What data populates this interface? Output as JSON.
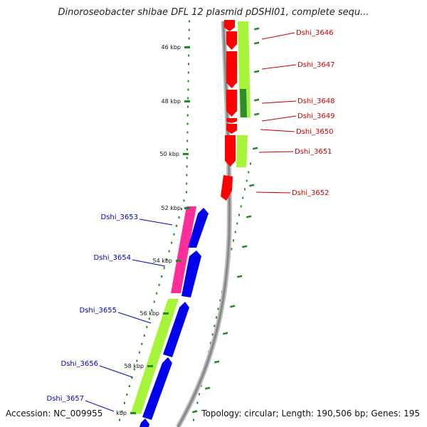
{
  "title": "Dinoroseobacter shibae DFL 12 plasmid pDSHI01, complete sequ...",
  "footer": {
    "accession": "Accession: NC_009955",
    "topology": "Topology: circular; Length: 190,506 bp; Genes: 195"
  },
  "colors": {
    "forward_cds": "#ff0000",
    "reverse_cds": "#0000ee",
    "orf_green": "#a6f53a",
    "orf_pink": "#ff2e9a",
    "orf_dark": "#2e8b2e",
    "backbone": "#888888",
    "tick": "#228b22",
    "forward_label": "#cc0000",
    "reverse_label": "#0000cc"
  },
  "ticks": [
    "46 kbp",
    "48 kbp",
    "50 kbp",
    "52 kbp",
    "54 kbp",
    "56 kbp",
    "58 kbp",
    "kbp"
  ],
  "forward_genes": [
    {
      "name": "Dshi_3646"
    },
    {
      "name": "Dshi_3647"
    },
    {
      "name": "Dshi_3648"
    },
    {
      "name": "Dshi_3649"
    },
    {
      "name": "Dshi_3650"
    },
    {
      "name": "Dshi_3651"
    },
    {
      "name": "Dshi_3652"
    }
  ],
  "reverse_genes": [
    {
      "name": "Dshi_3653"
    },
    {
      "name": "Dshi_3654"
    },
    {
      "name": "Dshi_3655"
    },
    {
      "name": "Dshi_3656"
    },
    {
      "name": "Dshi_3657"
    }
  ]
}
